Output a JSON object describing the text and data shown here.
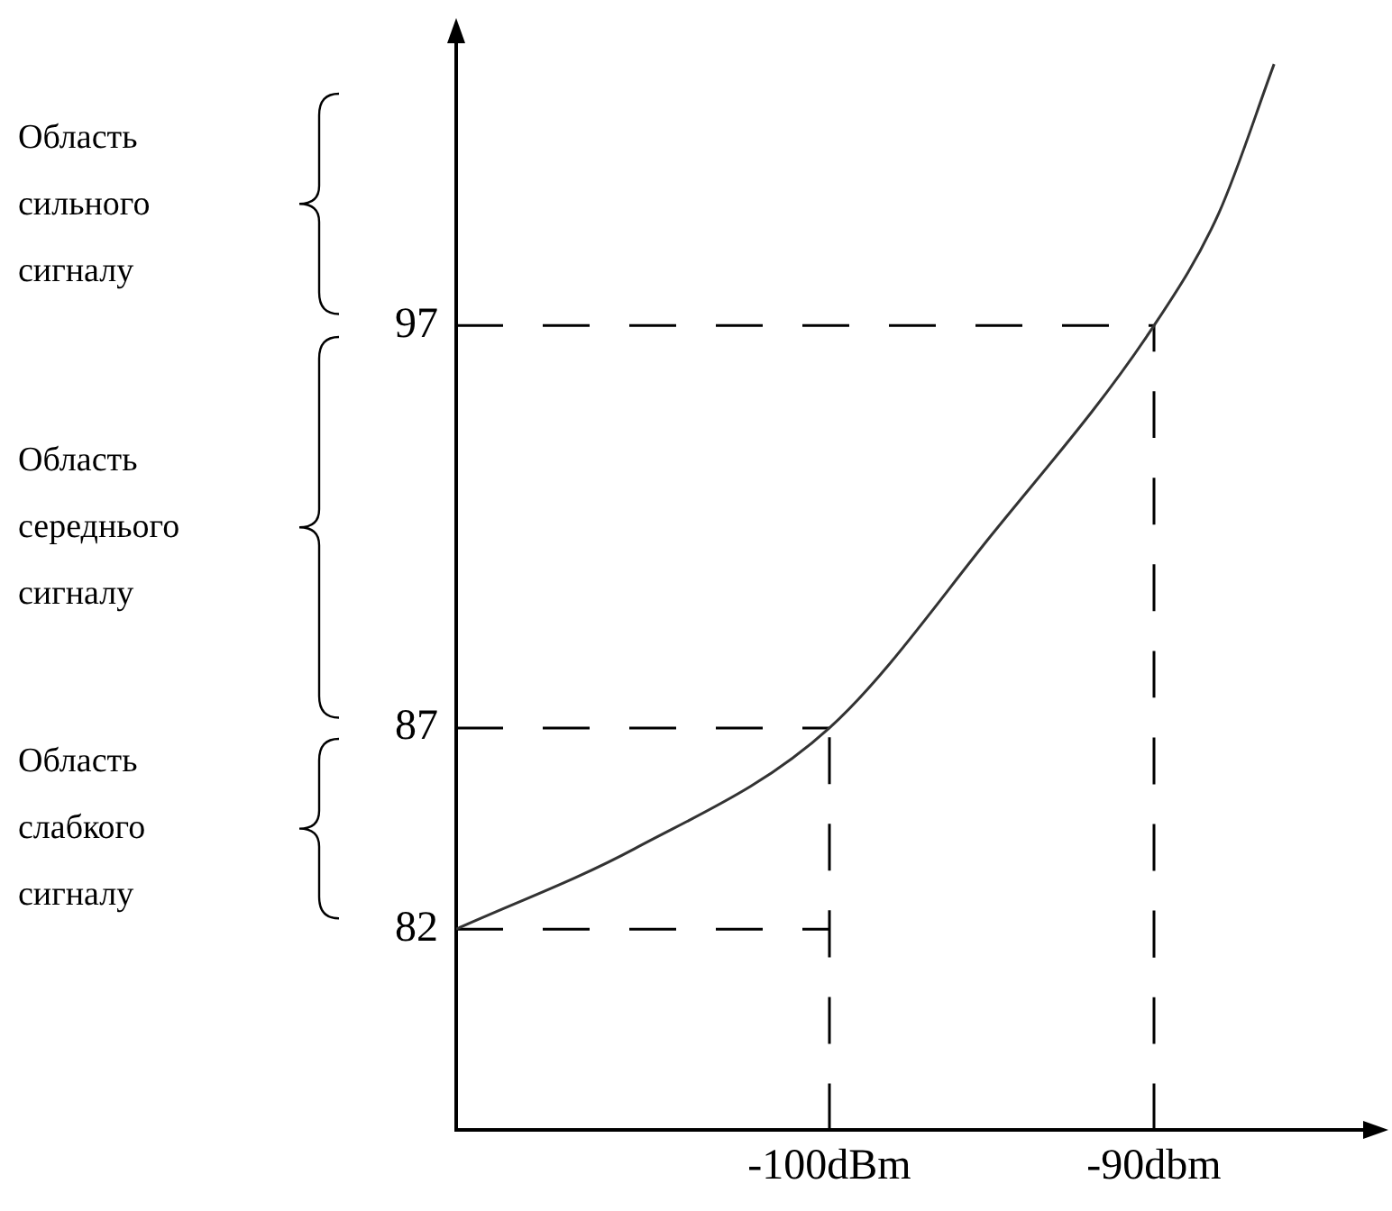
{
  "chart_data": {
    "type": "line",
    "xlim": [
      -111.5,
      -83
    ],
    "ylim": [
      77,
      104
    ],
    "xticks": [
      {
        "value": -100,
        "label": "-100dBm"
      },
      {
        "value": -90,
        "label": "-90dbm"
      }
    ],
    "yticks": [
      82,
      87,
      97
    ],
    "grid": false,
    "legend": false,
    "marker": "none",
    "series": [
      {
        "color": "#333333",
        "line_style": "solid",
        "x": [
          -111.5,
          -106,
          -100,
          -95,
          -90,
          -88,
          -86.3
        ],
        "values": [
          82,
          84,
          87,
          91.8,
          97,
          99.8,
          103.5
        ]
      },
      {
        "color": "#000000",
        "line_style": "dashed",
        "x": [
          -111.5,
          -90
        ],
        "values": [
          97,
          97
        ]
      },
      {
        "color": "#000000",
        "line_style": "dashed",
        "x": [
          -90,
          -90
        ],
        "values": [
          77,
          97
        ]
      },
      {
        "color": "#000000",
        "line_style": "dashed",
        "x": [
          -111.5,
          -100
        ],
        "values": [
          87,
          87
        ]
      },
      {
        "color": "#000000",
        "line_style": "dashed",
        "x": [
          -100,
          -100
        ],
        "values": [
          77,
          87
        ]
      },
      {
        "color": "#000000",
        "line_style": "dashed",
        "x": [
          -111.5,
          -100
        ],
        "values": [
          82,
          82
        ]
      }
    ],
    "annotations": [
      "Область сильного сигналу",
      "Область середнього сигналу",
      "Область слабкого сигналу"
    ]
  }
}
